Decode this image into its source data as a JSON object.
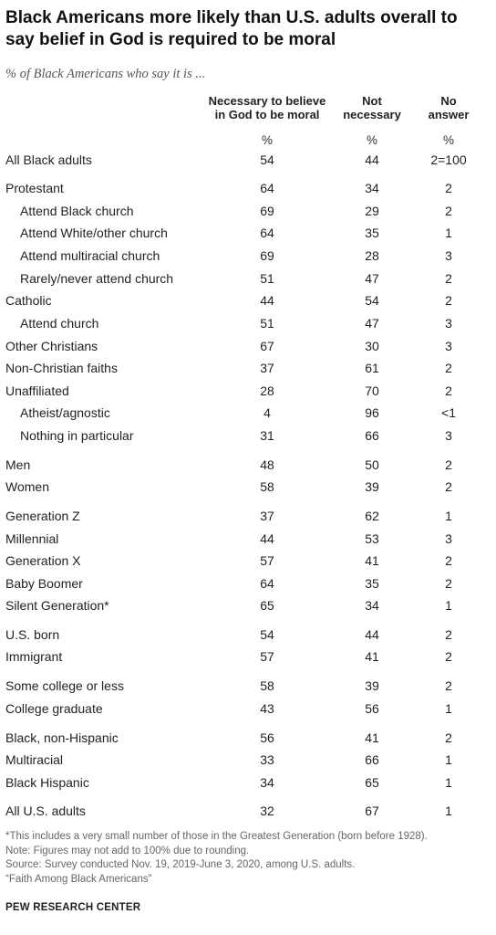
{
  "title": "Black Americans more likely than U.S. adults overall to say belief in God is required to be moral",
  "subtitle": "% of Black Americans who say it is ...",
  "chart_data": {
    "type": "table",
    "columns": [
      {
        "line1": "Necessary to believe",
        "line2": "in God to be moral"
      },
      {
        "line1": "Not",
        "line2": "necessary"
      },
      {
        "line1": "No",
        "line2": "answer"
      }
    ],
    "unit_row": [
      "%",
      "%",
      "%"
    ],
    "rows": [
      {
        "label": "All Black adults",
        "indent": false,
        "values": [
          "54",
          "44",
          "2=100"
        ]
      },
      {
        "label": "Protestant",
        "indent": false,
        "values": [
          "64",
          "34",
          "2"
        ]
      },
      {
        "label": "Attend Black church",
        "indent": true,
        "values": [
          "69",
          "29",
          "2"
        ]
      },
      {
        "label": "Attend White/other church",
        "indent": true,
        "values": [
          "64",
          "35",
          "1"
        ]
      },
      {
        "label": "Attend multiracial church",
        "indent": true,
        "values": [
          "69",
          "28",
          "3"
        ]
      },
      {
        "label": "Rarely/never attend church",
        "indent": true,
        "values": [
          "51",
          "47",
          "2"
        ]
      },
      {
        "label": "Catholic",
        "indent": false,
        "values": [
          "44",
          "54",
          "2"
        ]
      },
      {
        "label": "Attend church",
        "indent": true,
        "values": [
          "51",
          "47",
          "3"
        ]
      },
      {
        "label": "Other Christians",
        "indent": false,
        "values": [
          "67",
          "30",
          "3"
        ]
      },
      {
        "label": "Non-Christian faiths",
        "indent": false,
        "values": [
          "37",
          "61",
          "2"
        ]
      },
      {
        "label": "Unaffiliated",
        "indent": false,
        "values": [
          "28",
          "70",
          "2"
        ]
      },
      {
        "label": "Atheist/agnostic",
        "indent": true,
        "values": [
          "4",
          "96",
          "<1"
        ]
      },
      {
        "label": "Nothing in particular",
        "indent": true,
        "values": [
          "31",
          "66",
          "3"
        ]
      },
      {
        "label": "Men",
        "indent": false,
        "values": [
          "48",
          "50",
          "2"
        ]
      },
      {
        "label": "Women",
        "indent": false,
        "values": [
          "58",
          "39",
          "2"
        ]
      },
      {
        "label": "Generation Z",
        "indent": false,
        "values": [
          "37",
          "62",
          "1"
        ]
      },
      {
        "label": "Millennial",
        "indent": false,
        "values": [
          "44",
          "53",
          "3"
        ]
      },
      {
        "label": "Generation X",
        "indent": false,
        "values": [
          "57",
          "41",
          "2"
        ]
      },
      {
        "label": "Baby Boomer",
        "indent": false,
        "values": [
          "64",
          "35",
          "2"
        ]
      },
      {
        "label": "Silent Generation*",
        "indent": false,
        "values": [
          "65",
          "34",
          "1"
        ]
      },
      {
        "label": "U.S. born",
        "indent": false,
        "values": [
          "54",
          "44",
          "2"
        ]
      },
      {
        "label": "Immigrant",
        "indent": false,
        "values": [
          "57",
          "41",
          "2"
        ]
      },
      {
        "label": "Some college or less",
        "indent": false,
        "values": [
          "58",
          "39",
          "2"
        ]
      },
      {
        "label": "College graduate",
        "indent": false,
        "values": [
          "43",
          "56",
          "1"
        ]
      },
      {
        "label": "Black, non-Hispanic",
        "indent": false,
        "values": [
          "56",
          "41",
          "2"
        ]
      },
      {
        "label": "Multiracial",
        "indent": false,
        "values": [
          "33",
          "66",
          "1"
        ]
      },
      {
        "label": "Black Hispanic",
        "indent": false,
        "values": [
          "34",
          "65",
          "1"
        ]
      },
      {
        "label": "All U.S. adults",
        "indent": false,
        "values": [
          "32",
          "67",
          "1"
        ]
      }
    ]
  },
  "notes": [
    "*This includes a very small number of those in the Greatest Generation (born before 1928).",
    "Note: Figures may not add to 100% due to rounding.",
    "Source: Survey conducted Nov. 19, 2019-June 3, 2020, among U.S. adults.",
    "“Faith Among Black Americans”"
  ],
  "brand": "PEW RESEARCH CENTER"
}
